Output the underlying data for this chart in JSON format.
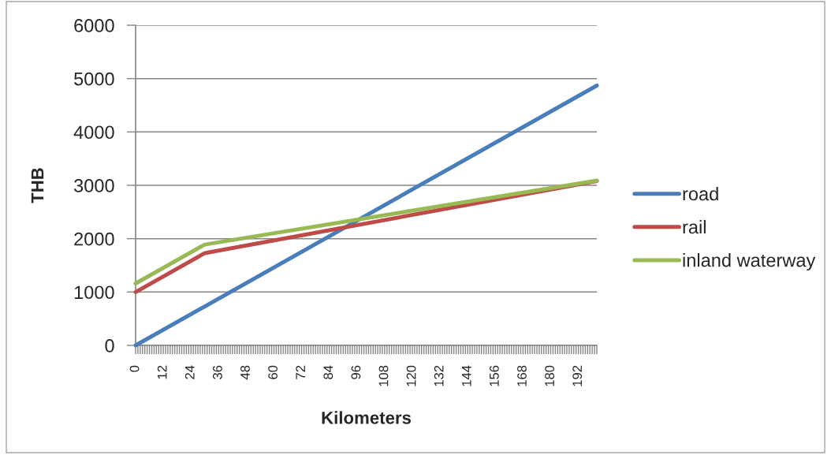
{
  "chart_data": {
    "type": "line",
    "xlabel": "Kilometers",
    "ylabel": "THB",
    "xlim": [
      0,
      200
    ],
    "xticks": [
      0,
      {
        "value": 1,
        "label": null
      },
      {
        "value": 2,
        "label": null
      },
      {
        "value": 3,
        "label": null
      },
      {
        "value": 4,
        "label": null
      },
      {
        "value": 5,
        "label": null
      },
      {
        "value": 6,
        "label": null
      },
      {
        "value": 7,
        "label": null
      },
      {
        "value": 8,
        "label": null
      },
      {
        "value": 9,
        "label": null
      },
      {
        "value": 10,
        "label": null
      },
      {
        "value": 11,
        "label": null
      },
      12,
      {
        "value": 13,
        "label": null
      },
      {
        "value": 14,
        "label": null
      },
      {
        "value": 15,
        "label": null
      },
      {
        "value": 16,
        "label": null
      },
      {
        "value": 17,
        "label": null
      },
      {
        "value": 18,
        "label": null
      },
      {
        "value": 19,
        "label": null
      },
      {
        "value": 20,
        "label": null
      },
      {
        "value": 21,
        "label": null
      },
      {
        "value": 22,
        "label": null
      },
      {
        "value": 23,
        "label": null
      },
      24,
      {
        "value": 25,
        "label": null
      },
      {
        "value": 26,
        "label": null
      },
      {
        "value": 27,
        "label": null
      },
      {
        "value": 28,
        "label": null
      },
      {
        "value": 29,
        "label": null
      },
      {
        "value": 30,
        "label": null
      },
      {
        "value": 31,
        "label": null
      },
      {
        "value": 32,
        "label": null
      },
      {
        "value": 33,
        "label": null
      },
      {
        "value": 34,
        "label": null
      },
      {
        "value": 35,
        "label": null
      },
      36,
      {
        "value": 37,
        "label": null
      },
      {
        "value": 38,
        "label": null
      },
      {
        "value": 39,
        "label": null
      },
      {
        "value": 40,
        "label": null
      },
      {
        "value": 41,
        "label": null
      },
      {
        "value": 42,
        "label": null
      },
      {
        "value": 43,
        "label": null
      },
      {
        "value": 44,
        "label": null
      },
      {
        "value": 45,
        "label": null
      },
      {
        "value": 46,
        "label": null
      },
      {
        "value": 47,
        "label": null
      },
      48,
      {
        "value": 49,
        "label": null
      },
      {
        "value": 50,
        "label": null
      },
      {
        "value": 51,
        "label": null
      },
      {
        "value": 52,
        "label": null
      },
      {
        "value": 53,
        "label": null
      },
      {
        "value": 54,
        "label": null
      },
      {
        "value": 55,
        "label": null
      },
      {
        "value": 56,
        "label": null
      },
      {
        "value": 57,
        "label": null
      },
      {
        "value": 58,
        "label": null
      },
      {
        "value": 59,
        "label": null
      },
      60,
      {
        "value": 61,
        "label": null
      },
      {
        "value": 62,
        "label": null
      },
      {
        "value": 63,
        "label": null
      },
      {
        "value": 64,
        "label": null
      },
      {
        "value": 65,
        "label": null
      },
      {
        "value": 66,
        "label": null
      },
      {
        "value": 67,
        "label": null
      },
      {
        "value": 68,
        "label": null
      },
      {
        "value": 69,
        "label": null
      },
      {
        "value": 70,
        "label": null
      },
      {
        "value": 71,
        "label": null
      },
      72,
      {
        "value": 73,
        "label": null
      },
      {
        "value": 74,
        "label": null
      },
      {
        "value": 75,
        "label": null
      },
      {
        "value": 76,
        "label": null
      },
      {
        "value": 77,
        "label": null
      },
      {
        "value": 78,
        "label": null
      },
      {
        "value": 79,
        "label": null
      },
      {
        "value": 80,
        "label": null
      },
      {
        "value": 81,
        "label": null
      },
      {
        "value": 82,
        "label": null
      },
      {
        "value": 83,
        "label": null
      },
      84,
      {
        "value": 85,
        "label": null
      },
      {
        "value": 86,
        "label": null
      },
      {
        "value": 87,
        "label": null
      },
      {
        "value": 88,
        "label": null
      },
      {
        "value": 89,
        "label": null
      },
      {
        "value": 90,
        "label": null
      },
      {
        "value": 91,
        "label": null
      },
      {
        "value": 92,
        "label": null
      },
      {
        "value": 93,
        "label": null
      },
      {
        "value": 94,
        "label": null
      },
      {
        "value": 95,
        "label": null
      },
      96,
      {
        "value": 97,
        "label": null
      },
      {
        "value": 98,
        "label": null
      },
      {
        "value": 99,
        "label": null
      },
      {
        "value": 100,
        "label": null
      },
      {
        "value": 101,
        "label": null
      },
      {
        "value": 102,
        "label": null
      },
      {
        "value": 103,
        "label": null
      },
      {
        "value": 104,
        "label": null
      },
      {
        "value": 105,
        "label": null
      },
      {
        "value": 106,
        "label": null
      },
      {
        "value": 107,
        "label": null
      },
      108,
      {
        "value": 109,
        "label": null
      },
      {
        "value": 110,
        "label": null
      },
      {
        "value": 111,
        "label": null
      },
      {
        "value": 112,
        "label": null
      },
      {
        "value": 113,
        "label": null
      },
      {
        "value": 114,
        "label": null
      },
      {
        "value": 115,
        "label": null
      },
      {
        "value": 116,
        "label": null
      },
      {
        "value": 117,
        "label": null
      },
      {
        "value": 118,
        "label": null
      },
      {
        "value": 119,
        "label": null
      },
      120,
      {
        "value": 121,
        "label": null
      },
      {
        "value": 122,
        "label": null
      },
      {
        "value": 123,
        "label": null
      },
      {
        "value": 124,
        "label": null
      },
      {
        "value": 125,
        "label": null
      },
      {
        "value": 126,
        "label": null
      },
      {
        "value": 127,
        "label": null
      },
      {
        "value": 128,
        "label": null
      },
      {
        "value": 129,
        "label": null
      },
      {
        "value": 130,
        "label": null
      },
      {
        "value": 131,
        "label": null
      },
      132,
      {
        "value": 133,
        "label": null
      },
      {
        "value": 134,
        "label": null
      },
      {
        "value": 135,
        "label": null
      },
      {
        "value": 136,
        "label": null
      },
      {
        "value": 137,
        "label": null
      },
      {
        "value": 138,
        "label": null
      },
      {
        "value": 139,
        "label": null
      },
      {
        "value": 140,
        "label": null
      },
      {
        "value": 141,
        "label": null
      },
      {
        "value": 142,
        "label": null
      },
      {
        "value": 143,
        "label": null
      },
      144,
      {
        "value": 145,
        "label": null
      },
      {
        "value": 146,
        "label": null
      },
      {
        "value": 147,
        "label": null
      },
      {
        "value": 148,
        "label": null
      },
      {
        "value": 149,
        "label": null
      },
      {
        "value": 150,
        "label": null
      },
      {
        "value": 151,
        "label": null
      },
      {
        "value": 152,
        "label": null
      },
      {
        "value": 153,
        "label": null
      },
      {
        "value": 154,
        "label": null
      },
      {
        "value": 155,
        "label": null
      },
      156,
      {
        "value": 157,
        "label": null
      },
      {
        "value": 158,
        "label": null
      },
      {
        "value": 159,
        "label": null
      },
      {
        "value": 160,
        "label": null
      },
      {
        "value": 161,
        "label": null
      },
      {
        "value": 162,
        "label": null
      },
      {
        "value": 163,
        "label": null
      },
      {
        "value": 164,
        "label": null
      },
      {
        "value": 165,
        "label": null
      },
      {
        "value": 166,
        "label": null
      },
      {
        "value": 167,
        "label": null
      },
      168,
      {
        "value": 169,
        "label": null
      },
      {
        "value": 170,
        "label": null
      },
      {
        "value": 171,
        "label": null
      },
      {
        "value": 172,
        "label": null
      },
      {
        "value": 173,
        "label": null
      },
      {
        "value": 174,
        "label": null
      },
      {
        "value": 175,
        "label": null
      },
      {
        "value": 176,
        "label": null
      },
      {
        "value": 177,
        "label": null
      },
      {
        "value": 178,
        "label": null
      },
      {
        "value": 179,
        "label": null
      },
      180,
      {
        "value": 181,
        "label": null
      },
      {
        "value": 182,
        "label": null
      },
      {
        "value": 183,
        "label": null
      },
      {
        "value": 184,
        "label": null
      },
      {
        "value": 185,
        "label": null
      },
      {
        "value": 186,
        "label": null
      },
      {
        "value": 187,
        "label": null
      },
      {
        "value": 188,
        "label": null
      },
      {
        "value": 189,
        "label": null
      },
      {
        "value": 190,
        "label": null
      },
      {
        "value": 191,
        "label": null
      },
      192,
      {
        "value": 193,
        "label": null
      },
      {
        "value": 194,
        "label": null
      },
      {
        "value": 195,
        "label": null
      },
      {
        "value": 196,
        "label": null
      },
      {
        "value": 197,
        "label": null
      },
      {
        "value": 198,
        "label": null
      },
      {
        "value": 199,
        "label": null
      },
      {
        "value": 200,
        "label": null
      }
    ],
    "ylim": [
      0,
      6000
    ],
    "yticks": [
      0,
      1000,
      2000,
      3000,
      4000,
      5000,
      6000
    ],
    "grid": "y",
    "legend": "right",
    "series": [
      {
        "name": "road",
        "color": "#4a7ebb",
        "x": [
          0,
          200
        ],
        "values": [
          0,
          4870
        ]
      },
      {
        "name": "rail",
        "color": "#be4b48",
        "x": [
          0,
          30,
          200
        ],
        "values": [
          1000,
          1730,
          3080
        ]
      },
      {
        "name": "inland waterway",
        "color": "#98b954",
        "x": [
          0,
          30,
          200
        ],
        "values": [
          1160,
          1890,
          3090
        ]
      }
    ]
  }
}
